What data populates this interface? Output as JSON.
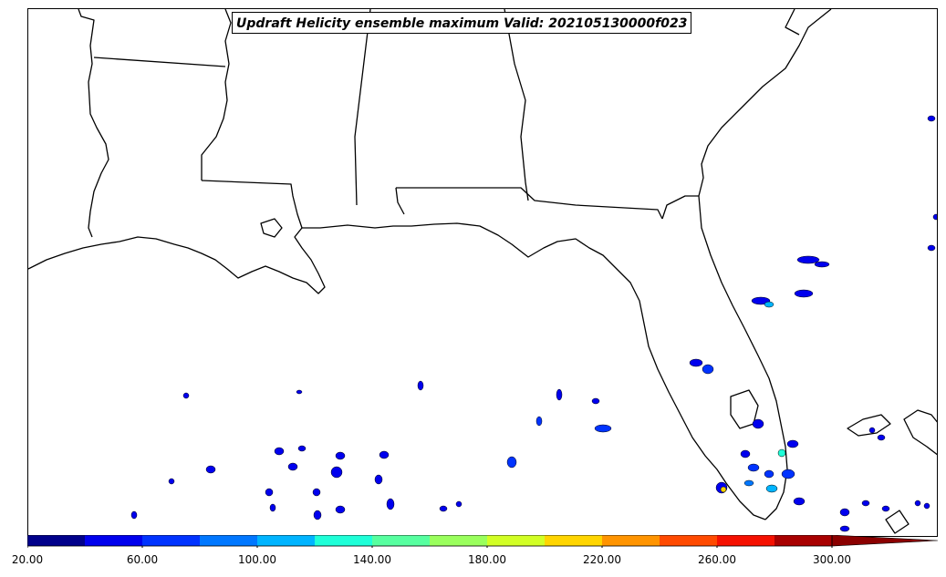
{
  "title": "Updraft Helicity ensemble maximum Valid: 202105130000f023",
  "colorbar": {
    "min": 20,
    "max": 320,
    "extend": "max",
    "bins": [
      {
        "from": 20,
        "to": 40,
        "color": "#00008b"
      },
      {
        "from": 40,
        "to": 60,
        "color": "#0000ee"
      },
      {
        "from": 60,
        "to": 80,
        "color": "#0033ff"
      },
      {
        "from": 80,
        "to": 100,
        "color": "#0077ff"
      },
      {
        "from": 100,
        "to": 120,
        "color": "#00b4ff"
      },
      {
        "from": 120,
        "to": 140,
        "color": "#1fffd8"
      },
      {
        "from": 140,
        "to": 160,
        "color": "#57ffa0"
      },
      {
        "from": 160,
        "to": 180,
        "color": "#9aff5d"
      },
      {
        "from": 180,
        "to": 200,
        "color": "#d2ff25"
      },
      {
        "from": 200,
        "to": 220,
        "color": "#ffd500"
      },
      {
        "from": 220,
        "to": 240,
        "color": "#ff9400"
      },
      {
        "from": 240,
        "to": 260,
        "color": "#ff4a00"
      },
      {
        "from": 260,
        "to": 280,
        "color": "#f51000"
      },
      {
        "from": 280,
        "to": 300,
        "color": "#a80000"
      },
      {
        "from": 300,
        "to": 320,
        "color": "#8b0000"
      }
    ],
    "tick_labels": [
      "20.00",
      "60.00",
      "100.00",
      "140.00",
      "180.00",
      "220.00",
      "260.00",
      "300.00"
    ],
    "tick_values": [
      20,
      60,
      100,
      140,
      180,
      220,
      260,
      300
    ]
  },
  "map": {
    "region": "Southeastern United States and Gulf of Mexico",
    "features": [
      "coastlines",
      "state-borders",
      "updraft-helicity-cells"
    ]
  }
}
